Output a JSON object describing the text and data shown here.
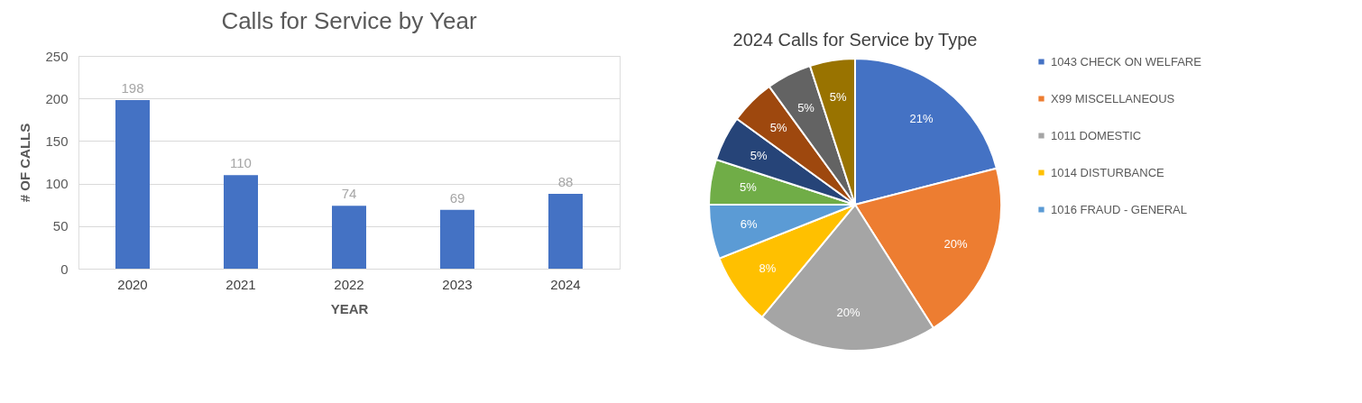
{
  "chart_data": [
    {
      "type": "bar",
      "title": "Calls for Service by Year",
      "xlabel": "YEAR",
      "ylabel": "# OF CALLS",
      "categories": [
        "2020",
        "2021",
        "2022",
        "2023",
        "2024"
      ],
      "values": [
        198,
        110,
        74,
        69,
        88
      ],
      "color": "#4472c4",
      "ylim": [
        0,
        250
      ],
      "yticks": [
        0,
        50,
        100,
        150,
        200,
        250
      ],
      "grid": "y",
      "data_labels": true
    },
    {
      "type": "pie",
      "title": "2024 Calls for Service by Type",
      "categories": [
        "1043 CHECK ON WELFARE",
        "X99 MISCELLANEOUS",
        "1011 DOMESTIC",
        "1014 DISTURBANCE",
        "1016 FRAUD - GENERAL",
        null,
        null,
        null,
        null,
        null
      ],
      "values": [
        21,
        20,
        20,
        8,
        6,
        5,
        5,
        5,
        5,
        5
      ],
      "colors": [
        "#4472c4",
        "#ed7d31",
        "#a5a5a5",
        "#ffc000",
        "#5b9bd5",
        "#70ad47",
        "#264478",
        "#9e480e",
        "#636363",
        "#997300"
      ],
      "value_labels": [
        "21%",
        "20%",
        "20%",
        "8%",
        "6%",
        "5%",
        "5%",
        "5%",
        "5%",
        "5%"
      ],
      "legend": "right"
    }
  ]
}
